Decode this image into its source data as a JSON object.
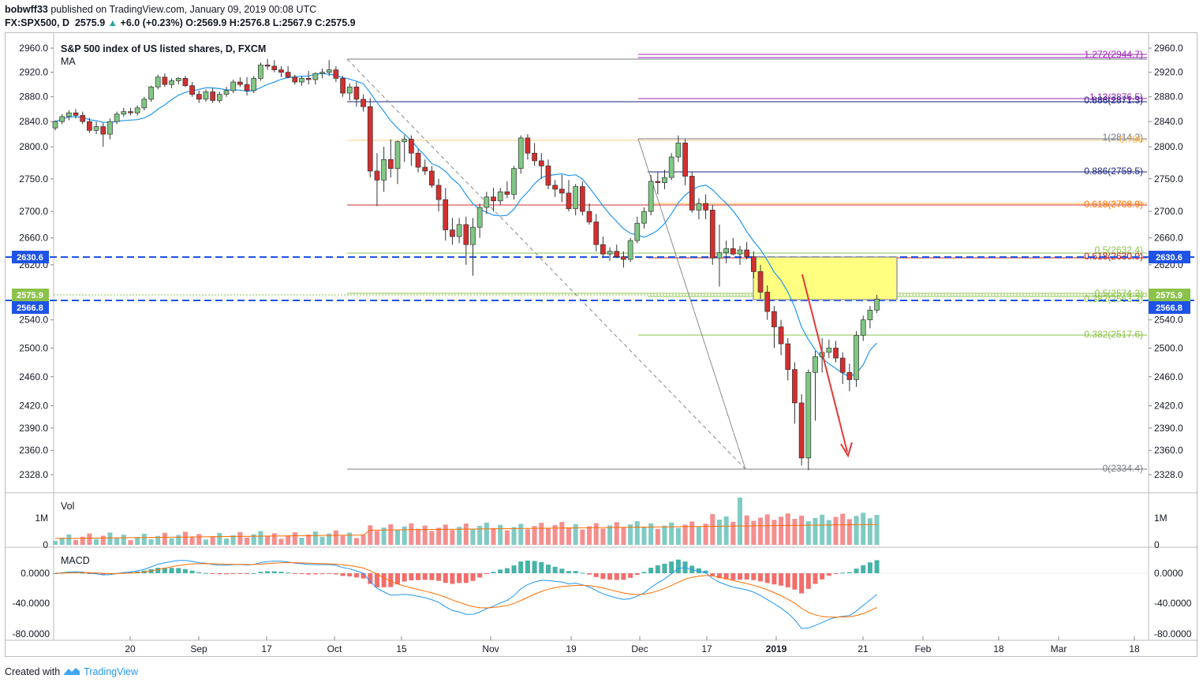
{
  "header": {
    "publisher": "bobwff33",
    "published_text": "published on TradingView.com, January 09, 2019 00:08 UTC",
    "symbol": "FX:SPX500, D",
    "last": "2575.9",
    "change": "+6.0 (+0.23%)",
    "ohlc": "O:2569.9 H:2576.8 L:2567.9 C:2575.9"
  },
  "footer": {
    "created_with": "Created with",
    "brand": "TradingView",
    "logo_icon": "tradingview-logo-icon"
  },
  "colors": {
    "up": "#26a69a",
    "down": "#ef5350",
    "ma": "#2196f3",
    "signal": "#ff6d00",
    "highlight_box": "#ffff80",
    "arrow": "#e53935",
    "guide_line": "#1e53e5"
  },
  "chart_data": {
    "type": "candlestick",
    "title": "S&P 500 index of US listed shares, D, FXCM",
    "indicator_label": "MA",
    "price_axis": {
      "ticks": [
        2960.0,
        2920.0,
        2880.0,
        2840.0,
        2800.0,
        2750.0,
        2700.0,
        2660.0,
        2620.0,
        2575.9,
        2540.0,
        2500.0,
        2460.0,
        2420.0,
        2390.0,
        2360.0,
        2328.0
      ],
      "tick_labels": [
        "2960.0",
        "2920.0",
        "2880.0",
        "2840.0",
        "2800.0",
        "2750.0",
        "2700.0",
        "2660.0",
        "2620.0",
        "2575.9",
        "2540.0",
        "2500.0",
        "2460.0",
        "2420.0",
        "2390.0",
        "2360.0",
        "2328.0"
      ],
      "scale": "log"
    },
    "price_flags": [
      {
        "label": "2630.6",
        "value": 2630.6,
        "color": "#1e53e5"
      },
      {
        "label": "2575.9",
        "value": 2575.9,
        "color": "#8bc34a"
      },
      {
        "label": "2566.8",
        "value": 2566.8,
        "color": "#1e53e5"
      }
    ],
    "x_axis": {
      "labels": [
        "20",
        "Sep",
        "17",
        "Oct",
        "15",
        "Nov",
        "19",
        "Dec",
        "17",
        "2019",
        "21",
        "Feb",
        "18",
        "Mar",
        "18"
      ]
    },
    "candles": [
      [
        2830,
        2842,
        2826,
        2840
      ],
      [
        2840,
        2852,
        2836,
        2848
      ],
      [
        2848,
        2858,
        2842,
        2854
      ],
      [
        2854,
        2860,
        2845,
        2850
      ],
      [
        2850,
        2856,
        2836,
        2840
      ],
      [
        2840,
        2846,
        2822,
        2826
      ],
      [
        2826,
        2840,
        2820,
        2832
      ],
      [
        2832,
        2838,
        2800,
        2820
      ],
      [
        2820,
        2845,
        2812,
        2840
      ],
      [
        2840,
        2856,
        2836,
        2852
      ],
      [
        2852,
        2862,
        2848,
        2856
      ],
      [
        2856,
        2862,
        2850,
        2854
      ],
      [
        2854,
        2866,
        2850,
        2862
      ],
      [
        2862,
        2880,
        2858,
        2876
      ],
      [
        2876,
        2898,
        2872,
        2896
      ],
      [
        2896,
        2916,
        2892,
        2912
      ],
      [
        2912,
        2918,
        2896,
        2900
      ],
      [
        2900,
        2910,
        2894,
        2906
      ],
      [
        2906,
        2912,
        2900,
        2910
      ],
      [
        2910,
        2914,
        2896,
        2898
      ],
      [
        2898,
        2904,
        2880,
        2884
      ],
      [
        2884,
        2890,
        2870,
        2876
      ],
      [
        2876,
        2892,
        2872,
        2888
      ],
      [
        2888,
        2894,
        2870,
        2874
      ],
      [
        2874,
        2888,
        2870,
        2884
      ],
      [
        2884,
        2896,
        2880,
        2890
      ],
      [
        2890,
        2908,
        2886,
        2904
      ],
      [
        2904,
        2912,
        2896,
        2900
      ],
      [
        2900,
        2912,
        2882,
        2890
      ],
      [
        2890,
        2914,
        2886,
        2910
      ],
      [
        2910,
        2936,
        2906,
        2932
      ],
      [
        2932,
        2942,
        2924,
        2930
      ],
      [
        2930,
        2940,
        2920,
        2924
      ],
      [
        2924,
        2930,
        2912,
        2920
      ],
      [
        2920,
        2930,
        2910,
        2912
      ],
      [
        2912,
        2916,
        2900,
        2904
      ],
      [
        2904,
        2914,
        2898,
        2910
      ],
      [
        2910,
        2922,
        2900,
        2908
      ],
      [
        2908,
        2920,
        2900,
        2918
      ],
      [
        2918,
        2926,
        2910,
        2920
      ],
      [
        2920,
        2940,
        2914,
        2924
      ],
      [
        2924,
        2930,
        2904,
        2910
      ],
      [
        2910,
        2914,
        2880,
        2886
      ],
      [
        2886,
        2902,
        2874,
        2896
      ],
      [
        2896,
        2904,
        2864,
        2876
      ],
      [
        2876,
        2884,
        2856,
        2864
      ],
      [
        2864,
        2878,
        2752,
        2762
      ],
      [
        2762,
        2790,
        2708,
        2748
      ],
      [
        2748,
        2800,
        2730,
        2780
      ],
      [
        2780,
        2812,
        2752,
        2766
      ],
      [
        2766,
        2810,
        2742,
        2808
      ],
      [
        2808,
        2818,
        2776,
        2812
      ],
      [
        2812,
        2818,
        2770,
        2790
      ],
      [
        2790,
        2796,
        2760,
        2768
      ],
      [
        2768,
        2780,
        2756,
        2762
      ],
      [
        2762,
        2770,
        2736,
        2740
      ],
      [
        2740,
        2750,
        2700,
        2718
      ],
      [
        2718,
        2736,
        2656,
        2672
      ],
      [
        2672,
        2690,
        2650,
        2662
      ],
      [
        2662,
        2690,
        2652,
        2680
      ],
      [
        2680,
        2692,
        2620,
        2650
      ],
      [
        2650,
        2690,
        2604,
        2676
      ],
      [
        2676,
        2712,
        2660,
        2706
      ],
      [
        2706,
        2730,
        2696,
        2722
      ],
      [
        2722,
        2736,
        2700,
        2716
      ],
      [
        2716,
        2736,
        2710,
        2730
      ],
      [
        2730,
        2746,
        2720,
        2726
      ],
      [
        2726,
        2770,
        2718,
        2766
      ],
      [
        2766,
        2818,
        2758,
        2814
      ],
      [
        2814,
        2820,
        2780,
        2790
      ],
      [
        2790,
        2806,
        2770,
        2778
      ],
      [
        2778,
        2790,
        2750,
        2770
      ],
      [
        2770,
        2780,
        2734,
        2740
      ],
      [
        2740,
        2748,
        2722,
        2734
      ],
      [
        2734,
        2756,
        2714,
        2728
      ],
      [
        2728,
        2748,
        2700,
        2704
      ],
      [
        2704,
        2742,
        2694,
        2738
      ],
      [
        2738,
        2746,
        2694,
        2700
      ],
      [
        2700,
        2712,
        2680,
        2684
      ],
      [
        2684,
        2696,
        2640,
        2650
      ],
      [
        2650,
        2662,
        2630,
        2636
      ],
      [
        2636,
        2646,
        2626,
        2640
      ],
      [
        2640,
        2650,
        2630,
        2632
      ],
      [
        2632,
        2640,
        2616,
        2628
      ],
      [
        2628,
        2660,
        2624,
        2656
      ],
      [
        2656,
        2692,
        2652,
        2682
      ],
      [
        2682,
        2706,
        2674,
        2700
      ],
      [
        2700,
        2756,
        2694,
        2746
      ],
      [
        2746,
        2760,
        2726,
        2744
      ],
      [
        2744,
        2764,
        2734,
        2752
      ],
      [
        2752,
        2790,
        2748,
        2784
      ],
      [
        2784,
        2818,
        2776,
        2806
      ],
      [
        2806,
        2812,
        2740,
        2754
      ],
      [
        2754,
        2760,
        2698,
        2702
      ],
      [
        2702,
        2720,
        2688,
        2712
      ],
      [
        2712,
        2726,
        2688,
        2702
      ],
      [
        2702,
        2710,
        2620,
        2630
      ],
      [
        2630,
        2680,
        2588,
        2638
      ],
      [
        2638,
        2656,
        2622,
        2644
      ],
      [
        2644,
        2660,
        2634,
        2636
      ],
      [
        2636,
        2648,
        2620,
        2642
      ],
      [
        2642,
        2654,
        2628,
        2632
      ],
      [
        2632,
        2640,
        2600,
        2610
      ],
      [
        2610,
        2620,
        2570,
        2580
      ],
      [
        2580,
        2590,
        2540,
        2552
      ],
      [
        2552,
        2560,
        2500,
        2530
      ],
      [
        2530,
        2540,
        2490,
        2506
      ],
      [
        2506,
        2514,
        2455,
        2470
      ],
      [
        2470,
        2480,
        2396,
        2424
      ],
      [
        2424,
        2436,
        2340,
        2350
      ],
      [
        2350,
        2470,
        2334,
        2466
      ],
      [
        2466,
        2496,
        2400,
        2488
      ],
      [
        2488,
        2514,
        2466,
        2494
      ],
      [
        2494,
        2512,
        2486,
        2500
      ],
      [
        2500,
        2510,
        2480,
        2486
      ],
      [
        2486,
        2494,
        2450,
        2466
      ],
      [
        2466,
        2478,
        2440,
        2456
      ],
      [
        2456,
        2524,
        2446,
        2518
      ],
      [
        2518,
        2546,
        2510,
        2540
      ],
      [
        2540,
        2560,
        2528,
        2554
      ],
      [
        2554,
        2576,
        2550,
        2570
      ]
    ],
    "ma_label": "MA",
    "fib_levels_right": [
      {
        "label": "1.272(2944.7)",
        "color": "#9c27b0"
      },
      {
        "label": "1.13(2876.5)",
        "color": "#9c27b0"
      },
      {
        "label": "0.886(2871.3)",
        "color": "#1a237e"
      },
      {
        "label": "1(2814.2)",
        "color": "#787b86"
      },
      {
        "label": "0.786",
        "color": "#ffb74d"
      },
      {
        "label": "0.886(2759.5)",
        "color": "#1a237e"
      },
      {
        "label": "0.618(2708.9)",
        "color": "#ff6d00"
      },
      {
        "label": "0.5(2632.4)",
        "color": "#8bc34a"
      },
      {
        "label": "0.618(2630.9)",
        "color": "#b71c1c"
      },
      {
        "label": "0.5(2574.3)",
        "color": "#8bc34a"
      },
      {
        "label": "0.382(2563.3)",
        "color": "#8bc34a"
      },
      {
        "label": "0.382(2517.6)",
        "color": "#8bc34a"
      },
      {
        "label": "0(2334.4)",
        "color": "#787b86"
      }
    ],
    "volume": {
      "label": "Vol",
      "axis_labels": [
        "1M",
        "0"
      ]
    },
    "macd": {
      "label": "MACD",
      "axis_labels": [
        "0.0000",
        "-40.0000",
        "-80.0000"
      ]
    }
  }
}
